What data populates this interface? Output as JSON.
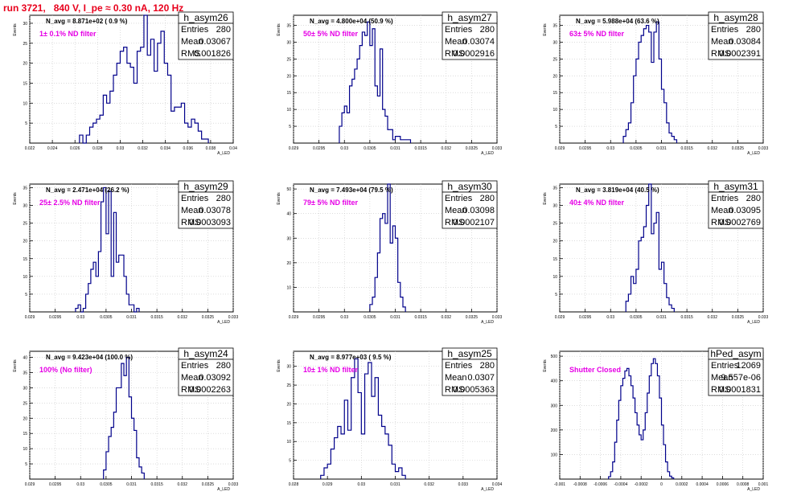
{
  "run_title": "run 3721,   840 V, I_pe ≈ 0.30 nA, 120 Hz",
  "chart_data": [
    {
      "type": "bar",
      "name": "h_asym26",
      "stats": {
        "entries": "280",
        "mean": "0.03067",
        "rms": "0.001826"
      },
      "n_avg": "N_avg = 8.871e+02 ( 0.9 %)",
      "filter": "1± 0.1% ND filter",
      "xlim": [
        0.022,
        0.04
      ],
      "ylim": [
        0,
        32
      ],
      "x_ticks": [
        "0.022",
        "0.024",
        "0.026",
        "0.028",
        "0.03",
        "0.032",
        "0.034",
        "0.036",
        "0.038",
        "0.04"
      ],
      "x_tick_values": [
        0.022,
        0.024,
        0.026,
        0.028,
        0.03,
        0.032,
        0.034,
        0.036,
        0.038,
        0.04
      ],
      "y_ticks": [
        5,
        10,
        15,
        20,
        25,
        30
      ],
      "xlabel": "A_LED",
      "ylabel": "Events",
      "bins": {
        "start": 0.0264,
        "width": 0.0003,
        "values": [
          2,
          0,
          2,
          4,
          5,
          6,
          7,
          12,
          10,
          13,
          17,
          20,
          23,
          24,
          20,
          19,
          15,
          23,
          24,
          32,
          22,
          26,
          18,
          25,
          28,
          20,
          17,
          8,
          9,
          9,
          10,
          5,
          4,
          6,
          5,
          3,
          1,
          1
        ]
      }
    },
    {
      "type": "bar",
      "name": "h_asym27",
      "stats": {
        "entries": "280",
        "mean": "0.03074",
        "rms": "0.0002916"
      },
      "n_avg": "N_avg = 4.800e+04 (50.9 %)",
      "filter": "50± 5% ND filter",
      "xlim": [
        0.029,
        0.033
      ],
      "ylim": [
        0,
        38
      ],
      "x_ticks": [
        "0.029",
        "0.0295",
        "0.03",
        "0.0305",
        "0.031",
        "0.0315",
        "0.032",
        "0.0325",
        "0.033"
      ],
      "x_tick_values": [
        0.029,
        0.0295,
        0.03,
        0.0305,
        0.031,
        0.0315,
        0.032,
        0.0325,
        0.033
      ],
      "y_ticks": [
        5,
        10,
        15,
        20,
        25,
        30,
        35
      ],
      "xlabel": "A_LED",
      "ylabel": "Events",
      "bins": {
        "start": 0.0299,
        "width": 5e-05,
        "values": [
          5,
          9,
          11,
          9,
          17,
          19,
          22,
          25,
          29,
          33,
          32,
          36,
          29,
          34,
          17,
          14,
          28,
          10,
          8,
          4,
          4,
          1,
          2,
          2,
          1,
          1,
          1,
          1
        ]
      }
    },
    {
      "type": "bar",
      "name": "h_asym28",
      "stats": {
        "entries": "280",
        "mean": "0.03084",
        "rms": "0.0002391"
      },
      "n_avg": "N_avg = 5.988e+04 (63.6 %)",
      "filter": "63± 5% ND filter",
      "xlim": [
        0.029,
        0.033
      ],
      "ylim": [
        0,
        38
      ],
      "x_ticks": [
        "0.029",
        "0.0295",
        "0.03",
        "0.0305",
        "0.031",
        "0.0315",
        "0.032",
        "0.0325",
        "0.033"
      ],
      "x_tick_values": [
        0.029,
        0.0295,
        0.03,
        0.0305,
        0.031,
        0.0315,
        0.032,
        0.0325,
        0.033
      ],
      "y_ticks": [
        5,
        10,
        15,
        20,
        25,
        30,
        35
      ],
      "xlabel": "A_LED",
      "ylabel": "Events",
      "bins": {
        "start": 0.03025,
        "width": 5e-05,
        "values": [
          2,
          4,
          6,
          12,
          20,
          25,
          30,
          32,
          34,
          35,
          33,
          24,
          33,
          36,
          25,
          16,
          12,
          6,
          3,
          2,
          1
        ]
      }
    },
    {
      "type": "bar",
      "name": "h_asym29",
      "stats": {
        "entries": "280",
        "mean": "0.03078",
        "rms": "0.0003093"
      },
      "n_avg": "N_avg = 2.471e+04 (26.2 %)",
      "filter": "25± 2.5% ND filter",
      "xlim": [
        0.029,
        0.033
      ],
      "ylim": [
        0,
        36
      ],
      "x_ticks": [
        "0.029",
        "0.0295",
        "0.03",
        "0.0305",
        "0.031",
        "0.0315",
        "0.032",
        "0.0325",
        "0.033"
      ],
      "x_tick_values": [
        0.029,
        0.0295,
        0.03,
        0.0305,
        0.031,
        0.0315,
        0.032,
        0.0325,
        0.033
      ],
      "y_ticks": [
        5,
        10,
        15,
        20,
        25,
        30,
        35
      ],
      "xlabel": "A_LED",
      "ylabel": "Events",
      "bins": {
        "start": 0.0299,
        "width": 5e-05,
        "values": [
          1,
          2,
          0,
          1,
          5,
          8,
          12,
          14,
          10,
          17,
          31,
          35,
          22,
          34,
          10,
          28,
          14,
          16,
          16,
          10,
          5,
          2,
          2,
          0,
          1
        ]
      }
    },
    {
      "type": "bar",
      "name": "h_asym30",
      "stats": {
        "entries": "280",
        "mean": "0.03098",
        "rms": "0.0002107"
      },
      "n_avg": "N_avg = 7.493e+04 (79.5 %)",
      "filter": "79± 5% ND filter",
      "xlim": [
        0.029,
        0.033
      ],
      "ylim": [
        0,
        52
      ],
      "x_ticks": [
        "0.029",
        "0.0295",
        "0.03",
        "0.0305",
        "0.031",
        "0.0315",
        "0.032",
        "0.0325",
        "0.033"
      ],
      "x_tick_values": [
        0.029,
        0.0295,
        0.03,
        0.0305,
        0.031,
        0.0315,
        0.032,
        0.0325,
        0.033
      ],
      "y_ticks": [
        10,
        20,
        30,
        40,
        50
      ],
      "xlabel": "A_LED",
      "ylabel": "Events",
      "bins": {
        "start": 0.0305,
        "width": 5e-05,
        "values": [
          3,
          6,
          14,
          24,
          38,
          40,
          36,
          52,
          28,
          35,
          30,
          12,
          6,
          2
        ]
      }
    },
    {
      "type": "bar",
      "name": "h_asym31",
      "stats": {
        "entries": "280",
        "mean": "0.03095",
        "rms": "0.0002769"
      },
      "n_avg": "N_avg = 3.819e+04 (40.5 %)",
      "filter": "40± 4% ND filter",
      "xlim": [
        0.029,
        0.033
      ],
      "ylim": [
        0,
        36
      ],
      "x_ticks": [
        "0.029",
        "0.0295",
        "0.03",
        "0.0305",
        "0.031",
        "0.0315",
        "0.032",
        "0.0325",
        "0.033"
      ],
      "x_tick_values": [
        0.029,
        0.0295,
        0.03,
        0.0305,
        0.031,
        0.0315,
        0.032,
        0.0325,
        0.033
      ],
      "y_ticks": [
        5,
        10,
        15,
        20,
        25,
        30,
        35
      ],
      "xlabel": "A_LED",
      "ylabel": "Events",
      "bins": {
        "start": 0.0303,
        "width": 5e-05,
        "values": [
          3,
          5,
          10,
          8,
          12,
          20,
          21,
          24,
          30,
          36,
          22,
          25,
          28,
          12,
          14,
          8,
          4,
          2,
          1
        ]
      }
    },
    {
      "type": "bar",
      "name": "h_asym24",
      "stats": {
        "entries": "280",
        "mean": "0.03092",
        "rms": "0.0002263"
      },
      "n_avg": "N_avg = 9.423e+04 (100.0 %)",
      "filter": "100% (No filter)",
      "xlim": [
        0.029,
        0.033
      ],
      "ylim": [
        0,
        42
      ],
      "x_ticks": [
        "0.029",
        "0.0295",
        "0.03",
        "0.0305",
        "0.031",
        "0.0315",
        "0.032",
        "0.0325",
        "0.033"
      ],
      "x_tick_values": [
        0.029,
        0.0295,
        0.03,
        0.0305,
        0.031,
        0.0315,
        0.032,
        0.0325,
        0.033
      ],
      "y_ticks": [
        5,
        10,
        15,
        20,
        25,
        30,
        35,
        40
      ],
      "xlabel": "A_LED",
      "ylabel": "Events",
      "bins": {
        "start": 0.03045,
        "width": 5e-05,
        "values": [
          3,
          9,
          14,
          17,
          22,
          30,
          30,
          38,
          34,
          40,
          27,
          20,
          16,
          7,
          4,
          2
        ]
      }
    },
    {
      "type": "bar",
      "name": "h_asym25",
      "stats": {
        "entries": "280",
        "mean": "0.0307",
        "rms": "0.0005363"
      },
      "n_avg": "N_avg = 8.977e+03 ( 9.5 %)",
      "filter": "10± 1% ND filter",
      "xlim": [
        0.028,
        0.034
      ],
      "ylim": [
        0,
        34
      ],
      "x_ticks": [
        "0.028",
        "0.029",
        "0.03",
        "0.031",
        "0.032",
        "0.033",
        "0.034"
      ],
      "x_tick_values": [
        0.028,
        0.029,
        0.03,
        0.031,
        0.032,
        0.033,
        0.034
      ],
      "y_ticks": [
        5,
        10,
        15,
        20,
        25,
        30
      ],
      "xlabel": "A_LED",
      "ylabel": "Events",
      "bins": {
        "start": 0.0288,
        "width": 0.0001,
        "values": [
          1,
          3,
          4,
          8,
          11,
          14,
          12,
          21,
          13,
          27,
          32,
          23,
          12,
          28,
          31,
          22,
          27,
          17,
          14,
          12,
          9,
          4,
          2,
          3,
          1
        ]
      }
    },
    {
      "type": "bar",
      "name": "hPed_asym",
      "stats": {
        "entries": "12069",
        "mean": "9.557e-06",
        "rms": "0.0001831"
      },
      "n_avg": "",
      "filter": "Shutter Closed",
      "xlim": [
        -0.001,
        0.001
      ],
      "ylim": [
        0,
        520
      ],
      "x_ticks": [
        "-0.001",
        "-0.0008",
        "-0.0006",
        "-0.0004",
        "-0.0002",
        "0",
        "0.0002",
        "0.0004",
        "0.0006",
        "0.0008",
        "0.001"
      ],
      "x_tick_values": [
        -0.001,
        -0.0008,
        -0.0006,
        -0.0004,
        -0.0002,
        0,
        0.0002,
        0.0004,
        0.0006,
        0.0008,
        0.001
      ],
      "y_ticks": [
        100,
        200,
        300,
        400,
        500
      ],
      "xlabel": "A_LED",
      "ylabel": "Events",
      "bins": {
        "start": -0.00052,
        "width": 2e-05,
        "values": [
          10,
          30,
          70,
          150,
          240,
          320,
          380,
          410,
          440,
          450,
          420,
          380,
          330,
          270,
          220,
          180,
          160,
          200,
          270,
          350,
          420,
          470,
          490,
          470,
          420,
          330,
          220,
          140,
          70,
          30,
          12,
          5
        ]
      }
    }
  ]
}
